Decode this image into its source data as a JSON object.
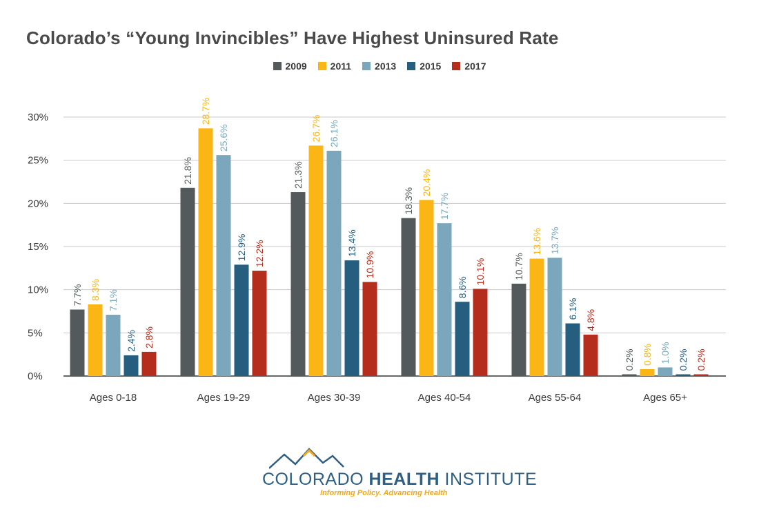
{
  "title": "Colorado’s “Young Invincibles” Have Highest Uninsured Rate",
  "colors": {
    "2009": "#545a5b",
    "2011": "#fbb616",
    "2013": "#7aa7bb",
    "2015": "#255e7e",
    "2017": "#b52d1c",
    "grid": "#c9c9c9",
    "axis": "#333333"
  },
  "chart_data": {
    "type": "bar",
    "title": "Colorado’s “Young Invincibles” Have Highest Uninsured Rate",
    "xlabel": "",
    "ylabel": "",
    "ylim": [
      0,
      30
    ],
    "yticks": [
      "0%",
      "5%",
      "10%",
      "15%",
      "20%",
      "25%",
      "30%"
    ],
    "grid": true,
    "legend_position": "top-center",
    "categories": [
      "Ages 0-18",
      "Ages 19-29",
      "Ages 30-39",
      "Ages 40-54",
      "Ages 55-64",
      "Ages 65+"
    ],
    "series": [
      {
        "name": "2009",
        "values": [
          7.7,
          21.8,
          21.3,
          18.3,
          10.7,
          0.2
        ],
        "labels": [
          "7.7%",
          "21.8%",
          "21.3%",
          "18.3%",
          "10.7%",
          "0.2%"
        ]
      },
      {
        "name": "2011",
        "values": [
          8.3,
          28.7,
          26.7,
          20.4,
          13.6,
          0.8
        ],
        "labels": [
          "8.3%",
          "28.7%",
          "26.7%",
          "20.4%",
          "13.6%",
          "0.8%"
        ]
      },
      {
        "name": "2013",
        "values": [
          7.1,
          25.6,
          26.1,
          17.7,
          13.7,
          1.0
        ],
        "labels": [
          "7.1%",
          "25.6%",
          "26.1%",
          "17.7%",
          "13.7%",
          "1.0%"
        ]
      },
      {
        "name": "2015",
        "values": [
          2.4,
          12.9,
          13.4,
          8.6,
          6.1,
          0.2
        ],
        "labels": [
          "2.4%",
          "12.9%",
          "13.4%",
          "8.6%",
          "6.1%",
          "0.2%"
        ]
      },
      {
        "name": "2017",
        "values": [
          2.8,
          12.2,
          10.9,
          10.1,
          4.8,
          0.2
        ],
        "labels": [
          "2.8%",
          "12.2%",
          "10.9%",
          "10.1%",
          "4.8%",
          "0.2%"
        ]
      }
    ]
  },
  "logo": {
    "name_regular": "COLORADO ",
    "name_bold": "HEALTH",
    "name_end": " INSTITUTE",
    "tagline": "Informing Policy. Advancing Health"
  }
}
